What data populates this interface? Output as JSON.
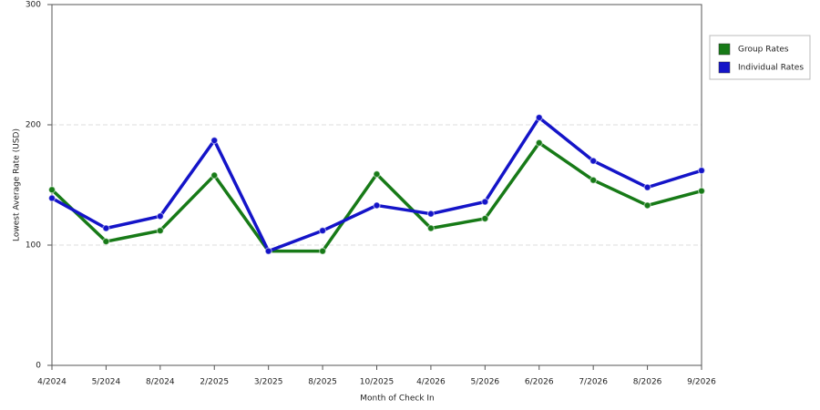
{
  "chart_data": {
    "type": "line",
    "x_label": "Month of Check In",
    "y_label": "Lowest Average Rate (USD)",
    "categories": [
      "4/2024",
      "5/2024",
      "8/2024",
      "2/2025",
      "3/2025",
      "8/2025",
      "10/2025",
      "4/2026",
      "5/2026",
      "6/2026",
      "7/2026",
      "8/2026",
      "9/2026"
    ],
    "series": [
      {
        "name": "Group Rates",
        "color": "#177a17",
        "values": [
          146,
          103,
          112,
          158,
          95,
          95,
          159,
          114,
          122,
          185,
          154,
          133,
          145
        ]
      },
      {
        "name": "Individual Rates",
        "color": "#1414c8",
        "values": [
          139,
          114,
          124,
          187,
          95,
          112,
          133,
          126,
          136,
          206,
          170,
          148,
          162
        ]
      }
    ],
    "ylim": [
      0,
      300
    ],
    "yticks": [
      0,
      100,
      200,
      300
    ],
    "grid": true,
    "legend": "right"
  }
}
